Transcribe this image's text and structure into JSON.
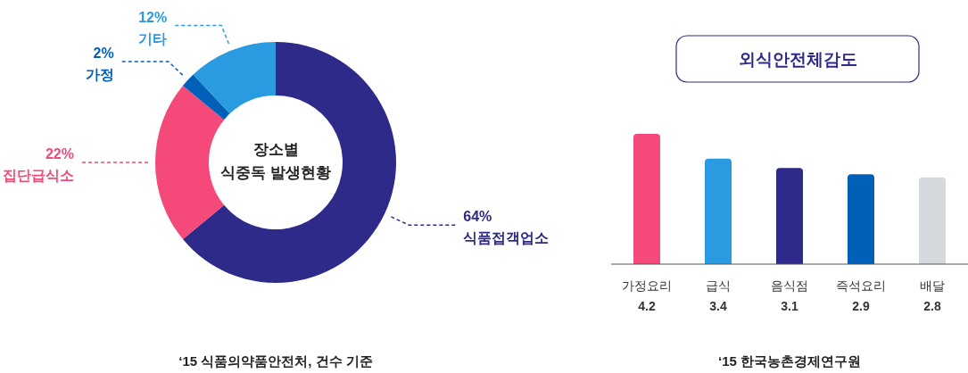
{
  "chart_data": [
    {
      "type": "donut",
      "title": "장소별\n식중독 발생현황",
      "categories": [
        "식품접객업소",
        "집단급식소",
        "가정",
        "기타"
      ],
      "values": [
        64,
        22,
        2,
        12
      ],
      "value_labels": [
        "64%",
        "22%",
        "2%",
        "12%"
      ],
      "colors": [
        "#2e2a8a",
        "#f5497a",
        "#0060b8",
        "#2a9be0"
      ],
      "annotations": [
        "‘15 식품의약품안전처, 건수 기준"
      ]
    },
    {
      "type": "bar",
      "title": "외식안전체감도",
      "categories": [
        "가정요리",
        "급식",
        "음식점",
        "즉석요리",
        "배달"
      ],
      "values": [
        4.2,
        3.4,
        3.1,
        2.9,
        2.8
      ],
      "colors": [
        "#f5497a",
        "#2a9be0",
        "#2e2a8a",
        "#0060b8",
        "#d5d9de"
      ],
      "data_labels": true,
      "annotations": [
        "‘15 한국농촌경제연구원"
      ]
    }
  ]
}
